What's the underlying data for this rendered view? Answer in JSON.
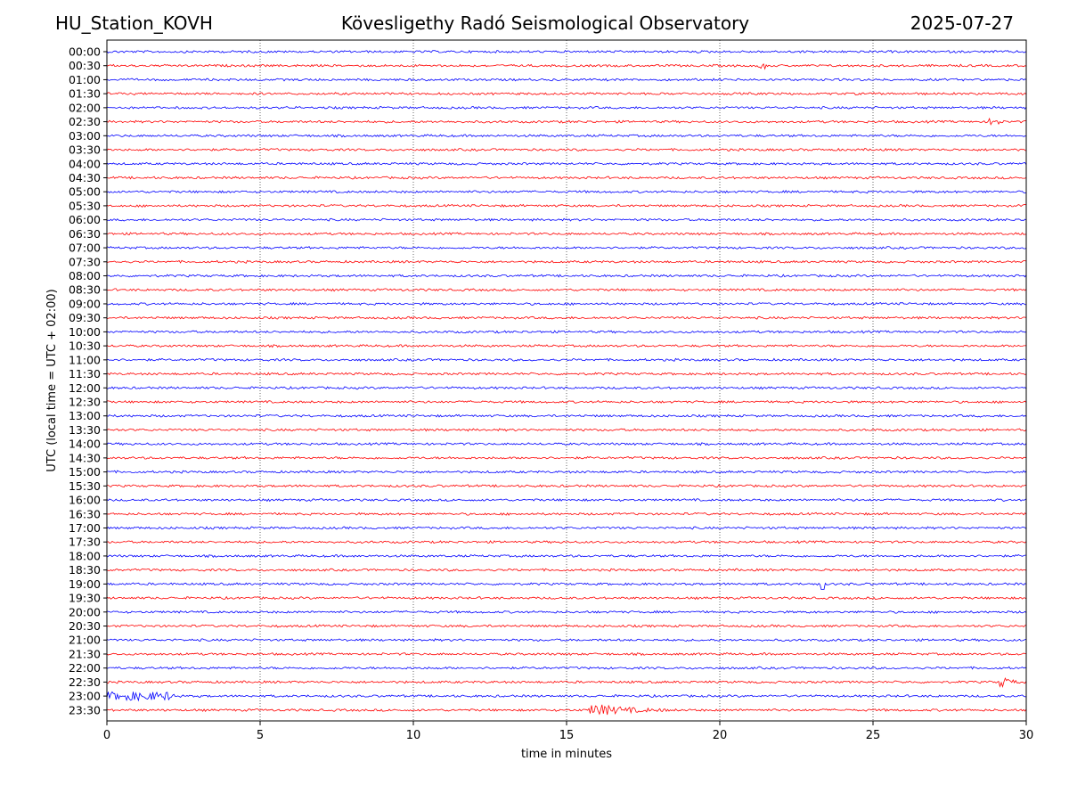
{
  "header": {
    "station": "HU_Station_KOVH",
    "title": "Kövesligethy Radó Seismological Observatory",
    "date": "2025-07-27"
  },
  "chart_data": {
    "type": "line",
    "title": "Kövesligethy Radó Seismological Observatory",
    "xlabel": "time in minutes",
    "ylabel": "UTC (local time = UTC + 02:00)",
    "xlim": [
      0,
      30
    ],
    "xticks": [
      0,
      5,
      10,
      15,
      20,
      25,
      30
    ],
    "grid": "vertical dotted lines at x ticks",
    "colors": [
      "#0000ff",
      "#ff0000"
    ],
    "rows": [
      "00:00",
      "00:30",
      "01:00",
      "01:30",
      "02:00",
      "02:30",
      "03:00",
      "03:30",
      "04:00",
      "04:30",
      "05:00",
      "05:30",
      "06:00",
      "06:30",
      "07:00",
      "07:30",
      "08:00",
      "08:30",
      "09:00",
      "09:30",
      "10:00",
      "10:30",
      "11:00",
      "11:30",
      "12:00",
      "12:30",
      "13:00",
      "13:30",
      "14:00",
      "14:30",
      "15:00",
      "15:30",
      "16:00",
      "16:30",
      "17:00",
      "17:30",
      "18:00",
      "18:30",
      "19:00",
      "19:30",
      "20:00",
      "20:30",
      "21:00",
      "21:30",
      "22:00",
      "22:30",
      "23:00",
      "23:30"
    ],
    "events": [
      {
        "row": "22:30",
        "start_min": 29.1,
        "end_min": 30.0,
        "amplitude": "strong"
      },
      {
        "row": "23:00",
        "start_min": 0.0,
        "end_min": 2.2,
        "amplitude": "moderate"
      },
      {
        "row": "23:30",
        "start_min": 15.7,
        "end_min": 19.0,
        "amplitude": "strong"
      },
      {
        "row": "19:00",
        "start_min": 23.3,
        "end_min": 23.4,
        "amplitude": "spike"
      },
      {
        "row": "02:30",
        "start_min": 28.8,
        "end_min": 29.2,
        "amplitude": "small"
      },
      {
        "row": "00:30",
        "start_min": 21.2,
        "end_min": 21.5,
        "amplitude": "small"
      }
    ]
  }
}
